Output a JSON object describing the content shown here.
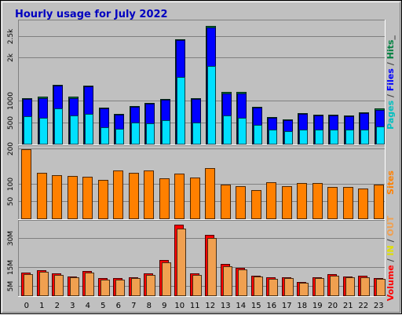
{
  "chart_data": {
    "type": "bar",
    "title": "Hourly usage for July 2022",
    "hours": [
      "0",
      "1",
      "2",
      "3",
      "4",
      "5",
      "6",
      "7",
      "8",
      "9",
      "10",
      "11",
      "12",
      "13",
      "14",
      "15",
      "16",
      "17",
      "18",
      "19",
      "20",
      "21",
      "22",
      "23"
    ],
    "panels": [
      {
        "id": "hits",
        "ylim": [
          0,
          2800
        ],
        "ticks": [
          {
            "value": 500,
            "label": "500"
          },
          {
            "value": 1000,
            "label": "1000"
          },
          {
            "value": 2000,
            "label": "2k"
          },
          {
            "value": 2500,
            "label": "2.5k"
          }
        ],
        "series": [
          {
            "key": "hits",
            "color": "#008040",
            "values": [
              1060,
              1090,
              1370,
              1090,
              1350,
              840,
              700,
              870,
              950,
              1030,
              2420,
              1060,
              2720,
              1200,
              1200,
              860,
              620,
              570,
              710,
              680,
              670,
              650,
              730,
              810
            ]
          },
          {
            "key": "files",
            "color": "#0000ff",
            "values": [
              1030,
              1060,
              1340,
              1060,
              1330,
              820,
              680,
              850,
              930,
              1010,
              2400,
              1030,
              2690,
              1170,
              1160,
              840,
              600,
              550,
              690,
              660,
              650,
              630,
              710,
              780
            ]
          },
          {
            "key": "pages",
            "color": "#00e0ff",
            "values": [
              630,
              600,
              820,
              650,
              700,
              390,
              350,
              490,
              470,
              550,
              1550,
              500,
              1800,
              650,
              600,
              440,
              330,
              290,
              330,
              330,
              330,
              320,
              330,
              400
            ]
          }
        ],
        "side_label": [
          {
            "text": "Pages",
            "color": "#00c0c0"
          },
          {
            "text": " / ",
            "color": "#404040"
          },
          {
            "text": "Files",
            "color": "#0000ff"
          },
          {
            "text": " / ",
            "color": "#404040"
          },
          {
            "text": "Hits",
            "color": "#008040"
          },
          {
            "text": "_",
            "color": "#404040"
          }
        ]
      },
      {
        "id": "sites",
        "ylim": [
          0,
          200
        ],
        "ticks": [
          {
            "value": 50,
            "label": "50"
          },
          {
            "value": 100,
            "label": "100"
          },
          {
            "value": 200,
            "label": "200"
          }
        ],
        "series": [
          {
            "key": "sites",
            "color": "#ff8000",
            "values": [
              198,
              131,
              124,
              121,
              119,
              109,
              136,
              131,
              137,
              115,
              128,
              116,
              143,
              96,
              93,
              81,
              104,
              93,
              102,
              102,
              90,
              90,
              86,
              96
            ]
          }
        ],
        "side_label": [
          {
            "text": "Sites",
            "color": "#ff8000"
          }
        ]
      },
      {
        "id": "volume",
        "ylim": [
          0,
          38
        ],
        "ticks": [
          {
            "value": 5,
            "label": "5M"
          },
          {
            "value": 15,
            "label": "15M"
          },
          {
            "value": 30,
            "label": "30M"
          }
        ],
        "series": [
          {
            "key": "volume",
            "color": "#ff0000",
            "values": [
              11.8,
              13.2,
              11.5,
              10.1,
              13.0,
              9.0,
              8.9,
              9.7,
              11.4,
              18.4,
              37.0,
              11.5,
              32.0,
              16.5,
              14.4,
              10.5,
              9.3,
              9.5,
              7.2,
              9.5,
              11.0,
              10.0,
              10.4,
              9.2
            ]
          },
          {
            "key": "in",
            "color": "#ffff00",
            "values": [
              0,
              0,
              0,
              0,
              0,
              0,
              0,
              0,
              0,
              0,
              0,
              0,
              0,
              0,
              0,
              0,
              0,
              0,
              0,
              0,
              0,
              0,
              0,
              0
            ]
          },
          {
            "key": "out",
            "color": "#f0a050",
            "values": [
              11.0,
              12.4,
              10.7,
              9.4,
              12.0,
              8.4,
              8.3,
              9.1,
              10.6,
              17.4,
              35.0,
              10.7,
              30.2,
              15.4,
              13.5,
              9.8,
              8.7,
              8.9,
              6.7,
              8.9,
              10.3,
              9.4,
              9.7,
              8.6
            ]
          }
        ],
        "side_label": [
          {
            "text": "Volume",
            "color": "#ff0000"
          },
          {
            "text": " / ",
            "color": "#404040"
          },
          {
            "text": "IN",
            "color": "#e0e000"
          },
          {
            "text": " / ",
            "color": "#404040"
          },
          {
            "text": "OUT",
            "color": "#f0a050"
          }
        ]
      }
    ]
  }
}
